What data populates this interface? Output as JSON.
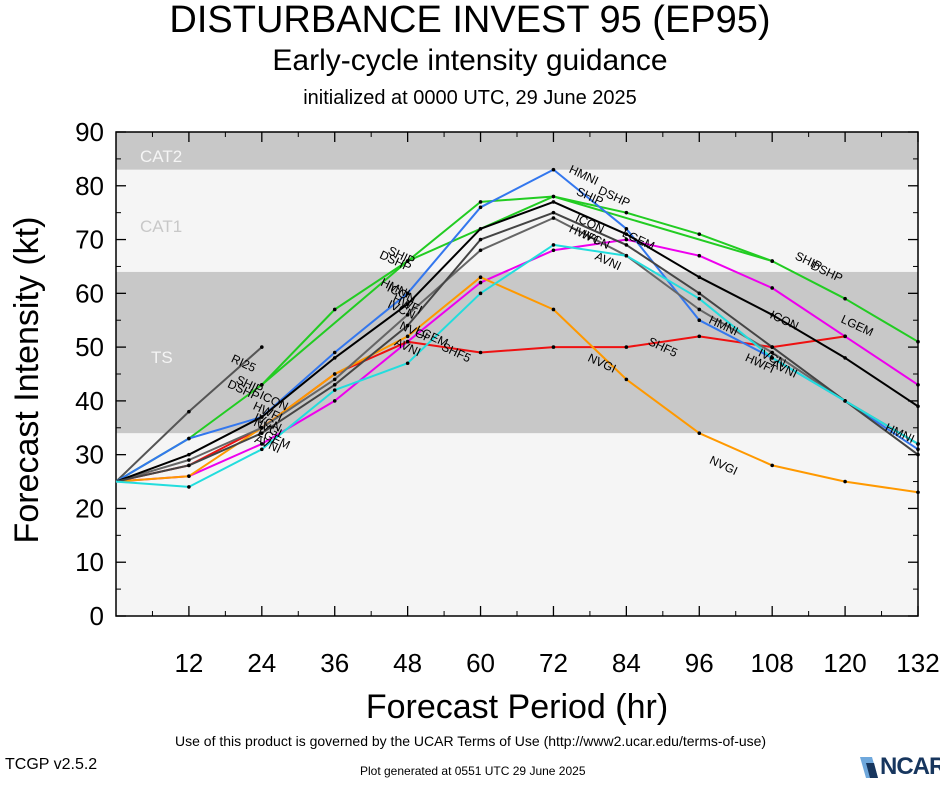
{
  "title": "DISTURBANCE INVEST 95 (EP95)",
  "subtitle": "Early-cycle intensity guidance",
  "initialized": "initialized at 0000 UTC, 29 June 2025",
  "footer": {
    "terms": "Use of this product is governed by the UCAR Terms of Use (http://www2.ucar.edu/terms-of-use)",
    "version": "TCGP v2.5.2",
    "generated": "Plot generated at 0551 UTC   29 June 2025",
    "logo": "NCAR"
  },
  "chart_data": {
    "type": "line",
    "title": "DISTURBANCE INVEST 95 (EP95)",
    "xlabel": "Forecast Period (hr)",
    "ylabel": "Forecast Intensity (kt)",
    "xlim": [
      0,
      132
    ],
    "ylim": [
      0,
      90
    ],
    "xticks": [
      12,
      24,
      36,
      48,
      60,
      72,
      84,
      96,
      108,
      120,
      132
    ],
    "yticks": [
      0,
      10,
      20,
      30,
      40,
      50,
      60,
      70,
      80,
      90
    ],
    "bands": [
      {
        "label": "TS",
        "from": 34,
        "to": 64,
        "color": "#c8c8c8"
      },
      {
        "label": "CAT1",
        "from": 64,
        "to": 83,
        "color": "#f5f5f5"
      },
      {
        "label": "CAT2",
        "from": 83,
        "to": 96,
        "color": "#c8c8c8"
      }
    ],
    "background_color": "#f5f5f5",
    "series": [
      {
        "name": "RI25",
        "color": "#555555",
        "x": [
          0,
          12,
          24
        ],
        "y": [
          25,
          38,
          50
        ]
      },
      {
        "name": "DSHP",
        "color": "#22cc22",
        "x": [
          0,
          12,
          24,
          36,
          48,
          60,
          72,
          84,
          96,
          108,
          120,
          132
        ],
        "y": [
          25,
          33,
          43,
          57,
          66,
          77,
          78,
          75,
          71,
          66,
          59,
          51
        ]
      },
      {
        "name": "SHIP",
        "color": "#22cc22",
        "x": [
          24,
          48,
          72,
          108
        ],
        "y": [
          43,
          66,
          78,
          66
        ]
      },
      {
        "name": "LGEM",
        "color": "#ee00ee",
        "x": [
          0,
          12,
          24,
          36,
          48,
          60,
          72,
          84,
          96,
          108,
          120,
          132
        ],
        "y": [
          25,
          26,
          32,
          40,
          51,
          62,
          68,
          70,
          67,
          61,
          52,
          43
        ]
      },
      {
        "name": "SHF5",
        "color": "#ee1111",
        "x": [
          0,
          12,
          24,
          36,
          48,
          60,
          72,
          84,
          96,
          108,
          120
        ],
        "y": [
          25,
          28,
          35,
          45,
          51,
          49,
          50,
          50,
          52,
          50,
          52
        ]
      },
      {
        "name": "NVGI",
        "color": "#ff9900",
        "x": [
          0,
          12,
          24,
          36,
          48,
          60,
          72,
          84,
          96,
          108,
          120,
          132
        ],
        "y": [
          25,
          26,
          35,
          45,
          52,
          63,
          57,
          44,
          34,
          28,
          25,
          23
        ]
      },
      {
        "name": "HMNI",
        "color": "#3377ee",
        "x": [
          0,
          12,
          24,
          36,
          48,
          60,
          72,
          84,
          96,
          108,
          120,
          132
        ],
        "y": [
          25,
          33,
          37,
          49,
          60,
          76,
          83,
          72,
          55,
          48,
          40,
          31
        ]
      },
      {
        "name": "HWFI",
        "color": "#666666",
        "x": [
          0,
          12,
          24,
          36,
          48,
          60,
          72,
          84,
          96,
          108,
          120,
          132
        ],
        "y": [
          25,
          29,
          35,
          44,
          56,
          68,
          74,
          67,
          57,
          49,
          40,
          32
        ]
      },
      {
        "name": "ICON",
        "color": "#000000",
        "x": [
          0,
          12,
          24,
          36,
          48,
          60,
          72,
          84,
          96,
          108,
          120,
          132
        ],
        "y": [
          25,
          30,
          37,
          48,
          58,
          72,
          77,
          71,
          63,
          56,
          48,
          39
        ]
      },
      {
        "name": "IVCN",
        "color": "#444444",
        "x": [
          0,
          12,
          24,
          36,
          48,
          60,
          72,
          84,
          96,
          108,
          120,
          132
        ],
        "y": [
          25,
          28,
          34,
          43,
          54,
          70,
          75,
          69,
          60,
          50,
          40,
          30
        ]
      },
      {
        "name": "AVNI",
        "color": "#22dddd",
        "x": [
          0,
          12,
          24,
          36,
          48,
          60,
          72,
          84,
          96,
          108,
          120,
          132
        ],
        "y": [
          25,
          24,
          31,
          42,
          47,
          60,
          69,
          67,
          59,
          48,
          40,
          32
        ]
      }
    ],
    "point_labels": [
      {
        "text": "RI25",
        "x": 21,
        "y": 47
      },
      {
        "text": "DSHP",
        "x": 21,
        "y": 42
      },
      {
        "text": "SHIP",
        "x": 22,
        "y": 43
      },
      {
        "text": "DSHP",
        "x": 46,
        "y": 66
      },
      {
        "text": "SHIP",
        "x": 47,
        "y": 67
      },
      {
        "text": "HMNI",
        "x": 46,
        "y": 61
      },
      {
        "text": "ICON",
        "x": 47,
        "y": 60
      },
      {
        "text": "HWFI",
        "x": 48,
        "y": 58
      },
      {
        "text": "IVCN",
        "x": 47,
        "y": 57
      },
      {
        "text": "NVGI",
        "x": 49,
        "y": 53
      },
      {
        "text": "LGEM",
        "x": 52,
        "y": 52
      },
      {
        "text": "AVNI",
        "x": 48,
        "y": 50
      },
      {
        "text": "SHF5",
        "x": 56,
        "y": 49
      },
      {
        "text": "ICON",
        "x": 26,
        "y": 40
      },
      {
        "text": "HWFI",
        "x": 25,
        "y": 38
      },
      {
        "text": "IVCN",
        "x": 25,
        "y": 36
      },
      {
        "text": "NVGI",
        "x": 25,
        "y": 35
      },
      {
        "text": "LGEM",
        "x": 26,
        "y": 33
      },
      {
        "text": "AVNI",
        "x": 25,
        "y": 32
      },
      {
        "text": "HMNI",
        "x": 77,
        "y": 82
      },
      {
        "text": "SHIP",
        "x": 78,
        "y": 78
      },
      {
        "text": "DSHP",
        "x": 82,
        "y": 78
      },
      {
        "text": "ICON",
        "x": 78,
        "y": 73
      },
      {
        "text": "HWFI",
        "x": 77,
        "y": 71
      },
      {
        "text": "IVCN",
        "x": 79,
        "y": 70
      },
      {
        "text": "LGEM",
        "x": 86,
        "y": 70
      },
      {
        "text": "AVNI",
        "x": 81,
        "y": 66
      },
      {
        "text": "NVGI",
        "x": 80,
        "y": 47
      },
      {
        "text": "SHF5",
        "x": 90,
        "y": 50
      },
      {
        "text": "HMNI",
        "x": 100,
        "y": 54
      },
      {
        "text": "IVCN",
        "x": 108,
        "y": 48
      },
      {
        "text": "HWFI",
        "x": 106,
        "y": 47
      },
      {
        "text": "AVNI",
        "x": 110,
        "y": 46
      },
      {
        "text": "ICON",
        "x": 110,
        "y": 55
      },
      {
        "text": "LGEM",
        "x": 122,
        "y": 54
      },
      {
        "text": "NVGI",
        "x": 100,
        "y": 28
      },
      {
        "text": "SHIP",
        "x": 114,
        "y": 66
      },
      {
        "text": "DSHP",
        "x": 117,
        "y": 64
      },
      {
        "text": "HMNI",
        "x": 129,
        "y": 34
      }
    ]
  }
}
